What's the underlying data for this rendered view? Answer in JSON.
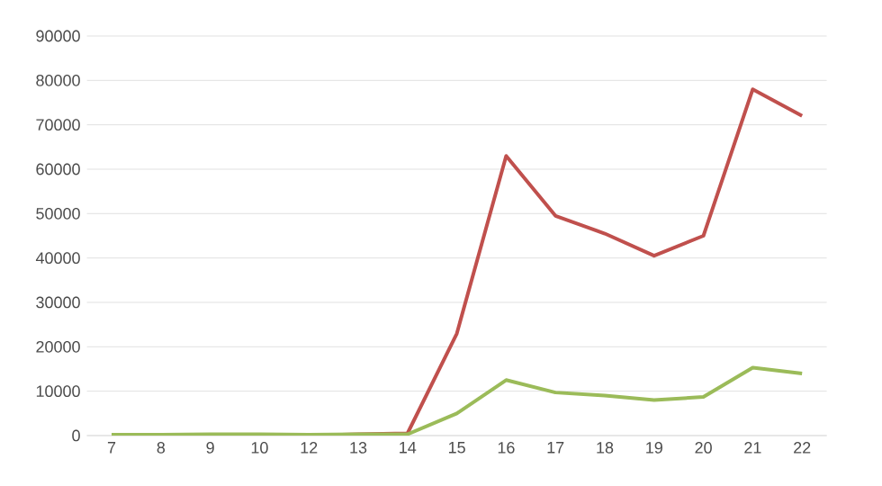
{
  "chart_data": {
    "type": "line",
    "categories": [
      "7",
      "8",
      "9",
      "10",
      "12",
      "13",
      "14",
      "15",
      "16",
      "17",
      "18",
      "19",
      "20",
      "21",
      "22"
    ],
    "series": [
      {
        "color": "#c0504d",
        "values": [
          null,
          null,
          null,
          null,
          0,
          300,
          500,
          23000,
          63000,
          49500,
          45500,
          40500,
          45000,
          78000,
          72000
        ]
      },
      {
        "color": "#9bbb59",
        "values": [
          200,
          200,
          300,
          300,
          200,
          300,
          300,
          5000,
          12500,
          9700,
          9000,
          8000,
          8700,
          15300,
          14000
        ]
      }
    ],
    "ylim": [
      0,
      90000
    ],
    "yticks": [
      0,
      10000,
      20000,
      30000,
      40000,
      50000,
      60000,
      70000,
      80000,
      90000
    ],
    "grid": "y",
    "legend": false,
    "marker": "none",
    "line_style": "solid"
  }
}
